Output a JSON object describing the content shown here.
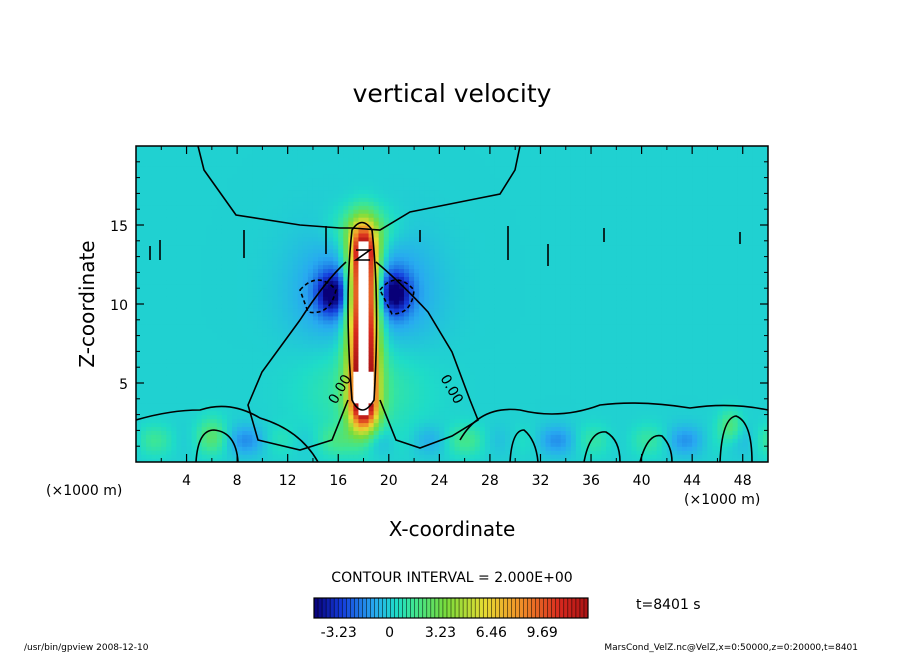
{
  "chart_data": {
    "type": "heatmap",
    "title": "vertical velocity",
    "xlabel": "X-coordinate",
    "ylabel": "Z-coordinate",
    "x_unit": "(×1000 m)",
    "xlim": [
      0,
      50
    ],
    "ylim": [
      0,
      20
    ],
    "x_ticks": [
      4,
      8,
      12,
      16,
      20,
      24,
      28,
      32,
      36,
      40,
      44,
      48
    ],
    "y_ticks": [
      5,
      10,
      15
    ],
    "contour_interval_text": "CONTOUR INTERVAL = 2.000E+00",
    "contour_labels": [
      "0.00",
      "0.00"
    ],
    "colorbar": {
      "min": -4.8,
      "max": 12.6,
      "tick_values": [
        -3.23,
        0,
        3.23,
        6.46,
        9.69
      ],
      "tick_labels": [
        "-3.23",
        "0",
        "3.23",
        "6.46",
        "9.69"
      ]
    },
    "time_label": "t=8401 s",
    "updraft_center_x": 18,
    "updraft_core_z_range": [
      4,
      13
    ],
    "updraft_max": 12.6,
    "downdraft_centers": [
      {
        "x": 15.5,
        "z": 10.7,
        "value": -4.2
      },
      {
        "x": 20.5,
        "z": 10.7,
        "value": -4.2
      }
    ],
    "grid": false,
    "legend": "colorbar-bottom"
  },
  "footer": {
    "left": "/usr/bin/gpview   2008-12-10",
    "right": "MarsCond_VelZ.nc@VelZ,x=0:50000,z=0:20000,t=8401"
  }
}
